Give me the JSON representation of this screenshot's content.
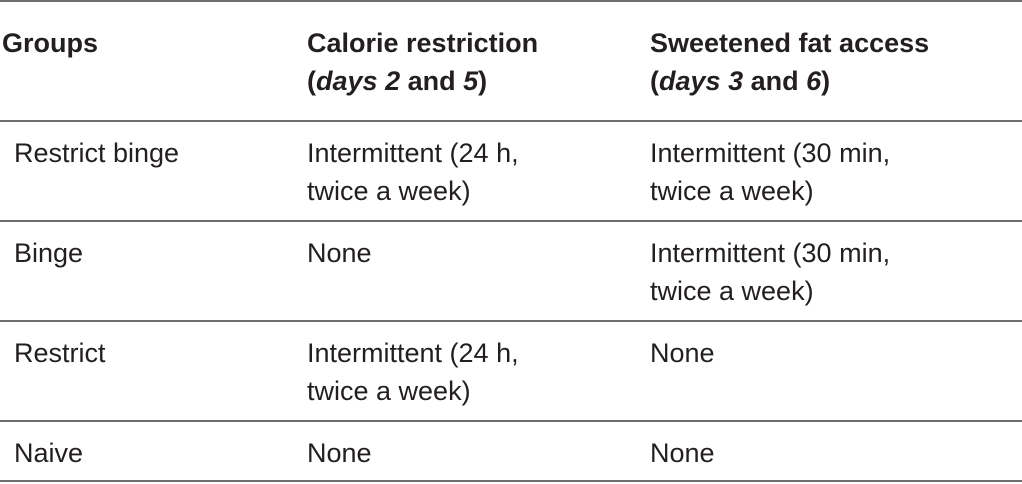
{
  "headers": {
    "groups": "Groups",
    "calorie": {
      "line1": "Calorie restriction",
      "open_paren": "(",
      "days_word": "days",
      "num_a": "2",
      "and_word": "and",
      "num_b": "5",
      "close_paren": ")"
    },
    "fat": {
      "line1": "Sweetened fat access",
      "open_paren": "(",
      "days_word": "days",
      "num_a": "3",
      "and_word": "and",
      "num_b": "6",
      "close_paren": ")"
    }
  },
  "rows": [
    {
      "group": "Restrict binge",
      "calorie": [
        "Intermittent (24 h,",
        "twice a week)"
      ],
      "fat": [
        "Intermittent (30 min,",
        "twice a week)"
      ]
    },
    {
      "group": "Binge",
      "calorie": [
        "None"
      ],
      "fat": [
        "Intermittent (30 min,",
        "twice a week)"
      ]
    },
    {
      "group": "Restrict",
      "calorie": [
        "Intermittent (24 h,",
        "twice a week)"
      ],
      "fat": [
        "None"
      ]
    },
    {
      "group": "Naive",
      "calorie": [
        "None"
      ],
      "fat": [
        "None"
      ]
    }
  ]
}
